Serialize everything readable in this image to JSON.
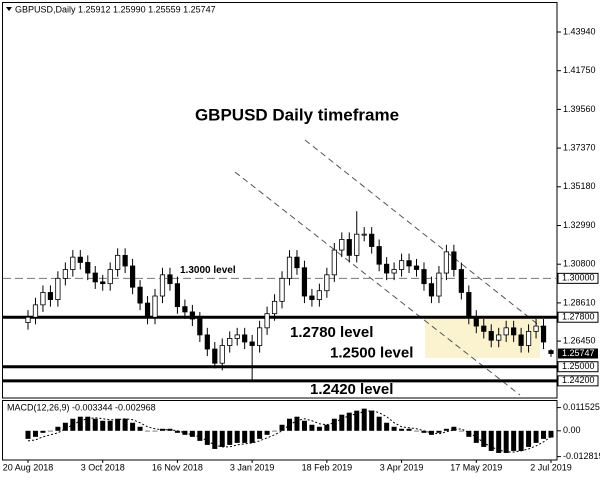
{
  "chart_data": [
    {
      "type": "candlestick",
      "header": "GBPUSD,Daily  1.25912 1.25990 1.25559 1.25747",
      "title": "GBPUSD Daily timeframe",
      "categories": [
        "20 Aug 2018",
        null,
        null,
        null,
        null,
        null,
        null,
        null,
        null,
        null,
        "3 Oct 2018",
        null,
        null,
        null,
        null,
        null,
        null,
        null,
        null,
        null,
        "16 Nov 2018",
        null,
        null,
        null,
        null,
        null,
        null,
        null,
        null,
        null,
        "3 Jan 2019",
        null,
        null,
        null,
        null,
        null,
        null,
        null,
        null,
        null,
        "18 Feb 2019",
        null,
        null,
        null,
        null,
        null,
        null,
        null,
        null,
        null,
        "3 Apr 2019",
        null,
        null,
        null,
        null,
        null,
        null,
        null,
        null,
        null,
        "17 May 2019",
        null,
        null,
        null,
        null,
        null,
        null,
        null,
        null,
        null,
        "2 Jul 2019"
      ],
      "open": [
        1.275,
        1.278,
        1.285,
        1.292,
        1.288,
        1.3,
        1.305,
        1.312,
        1.309,
        1.303,
        1.298,
        1.297,
        1.305,
        1.313,
        1.307,
        1.295,
        1.286,
        1.278,
        1.29,
        1.302,
        1.297,
        1.284,
        1.281,
        1.277,
        1.268,
        1.26,
        1.252,
        1.262,
        1.266,
        1.268,
        1.264,
        1.262,
        1.272,
        1.28,
        1.287,
        1.3,
        1.312,
        1.306,
        1.29,
        1.288,
        1.293,
        1.302,
        1.316,
        1.322,
        1.313,
        1.325,
        1.325,
        1.318,
        1.308,
        1.303,
        1.305,
        1.31,
        1.307,
        1.305,
        1.297,
        1.29,
        1.303,
        1.315,
        1.305,
        1.292,
        1.278,
        1.273,
        1.27,
        1.265,
        1.268,
        1.272,
        1.268,
        1.262,
        1.27,
        1.273,
        1.25912
      ],
      "high": [
        1.282,
        1.289,
        1.296,
        1.296,
        1.304,
        1.309,
        1.316,
        1.316,
        1.313,
        1.307,
        1.302,
        1.309,
        1.317,
        1.317,
        1.311,
        1.299,
        1.29,
        1.294,
        1.306,
        1.306,
        1.301,
        1.288,
        1.285,
        1.281,
        1.272,
        1.264,
        1.266,
        1.27,
        1.272,
        1.272,
        1.268,
        1.276,
        1.284,
        1.291,
        1.304,
        1.316,
        1.316,
        1.31,
        1.294,
        1.297,
        1.306,
        1.32,
        1.326,
        1.326,
        1.338,
        1.329,
        1.329,
        1.322,
        1.312,
        1.309,
        1.314,
        1.314,
        1.311,
        1.309,
        1.301,
        1.307,
        1.319,
        1.319,
        1.309,
        1.296,
        1.282,
        1.277,
        1.274,
        1.272,
        1.276,
        1.276,
        1.272,
        1.274,
        1.277,
        1.277,
        1.2599
      ],
      "low": [
        1.271,
        1.274,
        1.281,
        1.284,
        1.284,
        1.296,
        1.301,
        1.305,
        1.299,
        1.294,
        1.293,
        1.293,
        1.301,
        1.303,
        1.291,
        1.282,
        1.274,
        1.274,
        1.286,
        1.293,
        1.28,
        1.277,
        1.273,
        1.264,
        1.256,
        1.249,
        1.248,
        1.258,
        1.262,
        1.26,
        1.242,
        1.258,
        1.268,
        1.276,
        1.283,
        1.296,
        1.302,
        1.286,
        1.284,
        1.284,
        1.289,
        1.298,
        1.312,
        1.309,
        1.309,
        1.321,
        1.314,
        1.304,
        1.299,
        1.299,
        1.301,
        1.303,
        1.301,
        1.293,
        1.286,
        1.286,
        1.299,
        1.301,
        1.288,
        1.274,
        1.269,
        1.266,
        1.261,
        1.261,
        1.264,
        1.264,
        1.258,
        1.258,
        1.266,
        1.26,
        1.25559
      ],
      "close": [
        1.278,
        1.285,
        1.292,
        1.288,
        1.3,
        1.305,
        1.312,
        1.309,
        1.303,
        1.298,
        1.297,
        1.305,
        1.313,
        1.307,
        1.295,
        1.286,
        1.278,
        1.29,
        1.302,
        1.297,
        1.284,
        1.281,
        1.277,
        1.268,
        1.26,
        1.252,
        1.262,
        1.266,
        1.268,
        1.264,
        1.262,
        1.272,
        1.28,
        1.287,
        1.3,
        1.312,
        1.306,
        1.29,
        1.288,
        1.293,
        1.302,
        1.316,
        1.322,
        1.313,
        1.325,
        1.325,
        1.318,
        1.308,
        1.303,
        1.305,
        1.31,
        1.307,
        1.305,
        1.297,
        1.29,
        1.303,
        1.315,
        1.305,
        1.292,
        1.278,
        1.273,
        1.27,
        1.265,
        1.268,
        1.272,
        1.268,
        1.262,
        1.27,
        1.273,
        1.264,
        1.25747
      ],
      "up_color": "#ffffff",
      "down_color": "#000000",
      "ylim": [
        1.2323,
        1.4558
      ],
      "yticks": [
        {
          "value": 1.4394,
          "label": "1.43940"
        },
        {
          "value": 1.4175,
          "label": "1.41750"
        },
        {
          "value": 1.3956,
          "label": "1.39560"
        },
        {
          "value": 1.3737,
          "label": "1.37370"
        },
        {
          "value": 1.3518,
          "label": "1.35180"
        },
        {
          "value": 1.3299,
          "label": "1.32990"
        },
        {
          "value": 1.308,
          "label": "1.30800"
        },
        {
          "value": 1.2861,
          "label": "1.28610"
        },
        {
          "value": 1.2645,
          "label": "1.26450"
        }
      ],
      "levels": [
        {
          "value": 1.3,
          "label": "1.3000 level",
          "axis_label": "1.30000",
          "style": "dashed"
        },
        {
          "value": 1.278,
          "label": "1.2780  level",
          "axis_label": "1.27800",
          "style": "solid"
        },
        {
          "value": 1.25,
          "label": "1.2500  level",
          "axis_label": "1.25000",
          "style": "solid"
        },
        {
          "value": 1.242,
          "label": "1.2420  level",
          "axis_label": "1.24200",
          "style": "solid"
        }
      ],
      "last_price": 1.25747
    },
    {
      "type": "macd",
      "title": "MACD(12,26,9) -0.003344 -0.002968",
      "histogram": [
        -0.004,
        -0.003,
        -0.001,
        0.0,
        0.002,
        0.004,
        0.006,
        0.007,
        0.007,
        0.006,
        0.005,
        0.005,
        0.006,
        0.006,
        0.004,
        0.002,
        0.0,
        0.0,
        0.001,
        0.001,
        -0.001,
        -0.002,
        -0.003,
        -0.005,
        -0.007,
        -0.009,
        -0.008,
        -0.007,
        -0.006,
        -0.006,
        -0.006,
        -0.004,
        -0.002,
        0.0,
        0.003,
        0.006,
        0.007,
        0.005,
        0.003,
        0.002,
        0.003,
        0.006,
        0.008,
        0.009,
        0.01,
        0.011,
        0.01,
        0.007,
        0.004,
        0.002,
        0.001,
        0.001,
        0.0,
        -0.001,
        -0.002,
        -0.001,
        0.001,
        0.002,
        0.0,
        -0.003,
        -0.006,
        -0.008,
        -0.01,
        -0.011,
        -0.011,
        -0.01,
        -0.01,
        -0.008,
        -0.006,
        -0.004,
        -0.003344
      ],
      "signal": [
        -0.005,
        -0.0045,
        -0.003,
        -0.002,
        -0.001,
        0.001,
        0.003,
        0.005,
        0.006,
        0.0065,
        0.006,
        0.0055,
        0.0055,
        0.006,
        0.0055,
        0.004,
        0.002,
        0.001,
        0.0005,
        0.0005,
        0.0,
        -0.001,
        -0.002,
        -0.003,
        -0.005,
        -0.007,
        -0.008,
        -0.008,
        -0.007,
        -0.0065,
        -0.006,
        -0.005,
        -0.0035,
        -0.002,
        0.0,
        0.003,
        0.005,
        0.006,
        0.005,
        0.0035,
        0.003,
        0.004,
        0.006,
        0.0075,
        0.0085,
        0.0095,
        0.01,
        0.009,
        0.007,
        0.004,
        0.002,
        0.0015,
        0.001,
        0.0,
        -0.001,
        -0.0015,
        -0.0005,
        0.0005,
        0.001,
        -0.001,
        -0.003,
        -0.006,
        -0.008,
        -0.0095,
        -0.0105,
        -0.0105,
        -0.01,
        -0.009,
        -0.0075,
        -0.0055,
        -0.002968
      ],
      "color": "#000000",
      "ylim": [
        -0.0145,
        0.0148
      ],
      "yticks": [
        0.011525,
        {
          "value": 0,
          "label": "0.00"
        },
        -0.012819
      ]
    }
  ]
}
